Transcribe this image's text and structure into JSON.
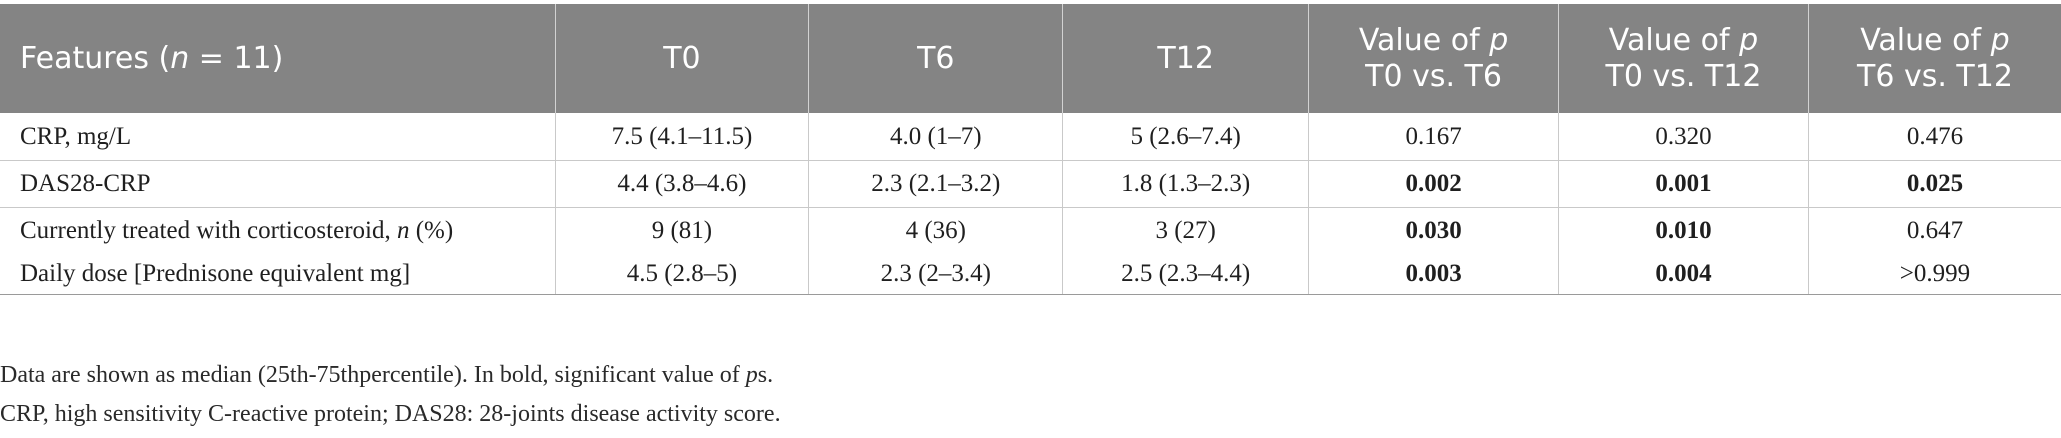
{
  "table": {
    "header": {
      "features_prefix": "Features (",
      "features_n": "n",
      "features_suffix": " = 11)",
      "t0": "T0",
      "t6": "T6",
      "t12": "T12",
      "p1_line1_prefix": "Value of ",
      "p1_line1_p": "p",
      "p1_line2": "T0 vs. T6",
      "p2_line1_prefix": "Value of ",
      "p2_line1_p": "p",
      "p2_line2": "T0 vs. T12",
      "p3_line1_prefix": "Value of ",
      "p3_line1_p": "p",
      "p3_line2": "T6 vs. T12"
    },
    "rows": [
      {
        "feature": "CRP, mg/L",
        "t0": "7.5 (4.1–11.5)",
        "t6": "4.0 (1–7)",
        "t12": "5 (2.6–7.4)",
        "p1": "0.167",
        "p2": "0.320",
        "p3": "0.476"
      },
      {
        "feature": "DAS28-CRP",
        "t0": "4.4 (3.8–4.6)",
        "t6": "2.3 (2.1–3.2)",
        "t12": "1.8 (1.3–2.3)",
        "p1": "0.002",
        "p2": "0.001",
        "p3": "0.025"
      },
      {
        "feature_prefix": "Currently treated with corticosteroid, ",
        "feature_n": "n",
        "feature_suffix": " (%)",
        "t0": "9 (81)",
        "t6": "4 (36)",
        "t12": "3 (27)",
        "p1": "0.030",
        "p2": "0.010",
        "p3": "0.647"
      },
      {
        "feature": "Daily dose [Prednisone equivalent mg]",
        "t0": "4.5 (2.8–5)",
        "t6": "2.3 (2–3.4)",
        "t12": "2.5 (2.3–4.4)",
        "p1": "0.003",
        "p2": "0.004",
        "p3": ">0.999"
      }
    ]
  },
  "notes": {
    "line1_prefix": "Data are shown as median (25th-75thpercentile). In bold, significant value of ",
    "line1_p": "p",
    "line1_suffix": "s.",
    "line2": "CRP, high sensitivity C-reactive protein; DAS28: 28-joints disease activity score."
  },
  "colors": {
    "header_bg": "#848484",
    "header_text": "#ffffff",
    "body_text": "#1f1f1f",
    "grid_line": "#c9c9c9"
  }
}
